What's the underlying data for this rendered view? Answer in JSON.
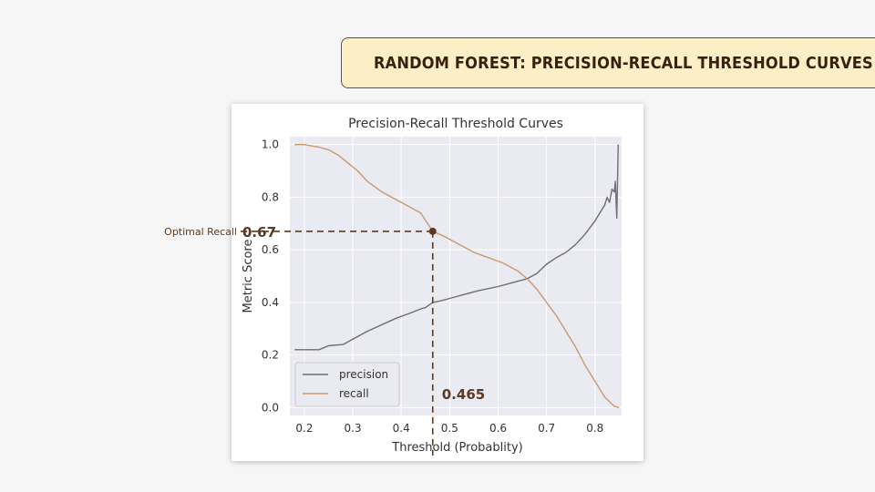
{
  "banner": {
    "title": "RANDOM FOREST: PRECISION-RECALL THRESHOLD CURVES"
  },
  "annotations": {
    "optimal_label": "Optimal Recall",
    "optimal_value": "0.67",
    "optimal_value_num": 0.67,
    "threshold_value": "0.465",
    "threshold_value_num": 0.465,
    "color": "#5a3a22"
  },
  "chart_data": {
    "type": "line",
    "title": "Precision-Recall Threshold Curves",
    "xlabel": "Threshold (Probablity)",
    "ylabel": "Metric Score",
    "xlim": [
      0.17,
      0.855
    ],
    "ylim": [
      -0.03,
      1.03
    ],
    "xticks": [
      0.2,
      0.3,
      0.4,
      0.5,
      0.6,
      0.7,
      0.8
    ],
    "xtick_labels": [
      "0.2",
      "0.3",
      "0.4",
      "0.5",
      "0.6",
      "0.7",
      "0.8"
    ],
    "yticks": [
      0.0,
      0.2,
      0.4,
      0.6,
      0.8,
      1.0
    ],
    "ytick_labels": [
      "0.0",
      "0.2",
      "0.4",
      "0.6",
      "0.8",
      "1.0"
    ],
    "grid": true,
    "legend_position": "lower-left",
    "plot_background": "#eaeaf2",
    "series": [
      {
        "name": "precision",
        "color": "#6e6e6e",
        "points": [
          [
            0.18,
            0.22
          ],
          [
            0.23,
            0.22
          ],
          [
            0.25,
            0.235
          ],
          [
            0.28,
            0.24
          ],
          [
            0.3,
            0.26
          ],
          [
            0.33,
            0.29
          ],
          [
            0.36,
            0.315
          ],
          [
            0.39,
            0.34
          ],
          [
            0.42,
            0.36
          ],
          [
            0.44,
            0.375
          ],
          [
            0.45,
            0.38
          ],
          [
            0.465,
            0.4
          ],
          [
            0.48,
            0.405
          ],
          [
            0.5,
            0.415
          ],
          [
            0.53,
            0.43
          ],
          [
            0.56,
            0.445
          ],
          [
            0.6,
            0.46
          ],
          [
            0.63,
            0.475
          ],
          [
            0.66,
            0.49
          ],
          [
            0.68,
            0.51
          ],
          [
            0.7,
            0.545
          ],
          [
            0.72,
            0.57
          ],
          [
            0.74,
            0.59
          ],
          [
            0.76,
            0.62
          ],
          [
            0.78,
            0.66
          ],
          [
            0.8,
            0.71
          ],
          [
            0.81,
            0.74
          ],
          [
            0.82,
            0.77
          ],
          [
            0.825,
            0.8
          ],
          [
            0.83,
            0.78
          ],
          [
            0.835,
            0.83
          ],
          [
            0.84,
            0.82
          ],
          [
            0.842,
            0.86
          ],
          [
            0.845,
            0.72
          ],
          [
            0.848,
            1.0
          ]
        ]
      },
      {
        "name": "recall",
        "color": "#c99a6e",
        "points": [
          [
            0.18,
            1.0
          ],
          [
            0.2,
            1.0
          ],
          [
            0.23,
            0.99
          ],
          [
            0.25,
            0.98
          ],
          [
            0.27,
            0.96
          ],
          [
            0.29,
            0.93
          ],
          [
            0.31,
            0.9
          ],
          [
            0.33,
            0.86
          ],
          [
            0.36,
            0.82
          ],
          [
            0.39,
            0.79
          ],
          [
            0.42,
            0.76
          ],
          [
            0.44,
            0.74
          ],
          [
            0.465,
            0.67
          ],
          [
            0.49,
            0.65
          ],
          [
            0.52,
            0.62
          ],
          [
            0.55,
            0.59
          ],
          [
            0.58,
            0.57
          ],
          [
            0.61,
            0.55
          ],
          [
            0.64,
            0.52
          ],
          [
            0.66,
            0.49
          ],
          [
            0.68,
            0.45
          ],
          [
            0.7,
            0.4
          ],
          [
            0.72,
            0.35
          ],
          [
            0.74,
            0.29
          ],
          [
            0.76,
            0.23
          ],
          [
            0.78,
            0.16
          ],
          [
            0.8,
            0.1
          ],
          [
            0.82,
            0.04
          ],
          [
            0.84,
            0.005
          ],
          [
            0.85,
            0.0
          ]
        ]
      }
    ]
  }
}
